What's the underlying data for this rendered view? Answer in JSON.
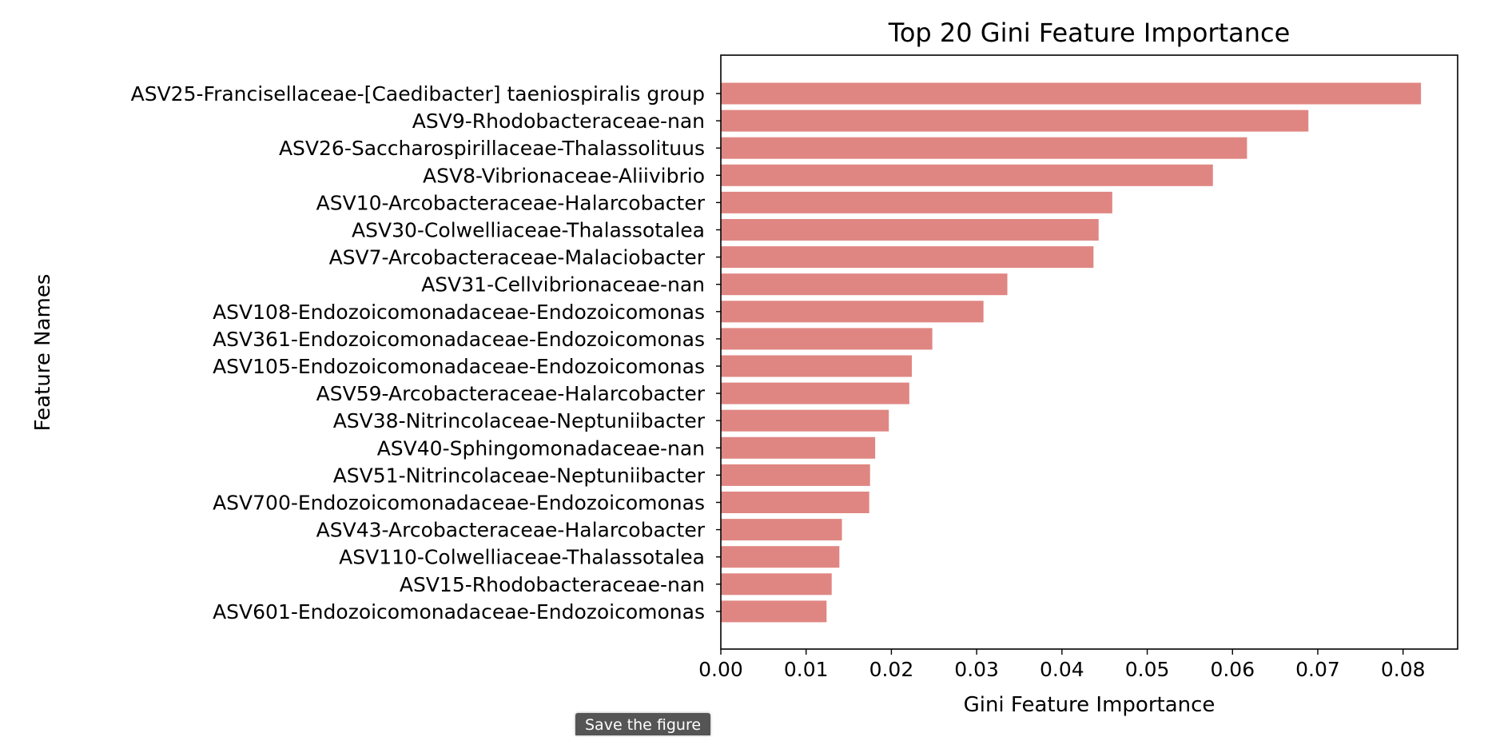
{
  "colors": {
    "bar": "#e08682",
    "axis": "#000000",
    "text": "#000000",
    "tooltip_bg": "#555555"
  },
  "tooltip": {
    "label": "Save the figure"
  },
  "chart_data": {
    "type": "bar",
    "orientation": "horizontal",
    "title": "Top 20 Gini Feature Importance",
    "xlabel": "Gini Feature Importance",
    "ylabel": "Feature Names",
    "xlim": [
      0,
      0.0864
    ],
    "xticks": [
      "0.00",
      "0.01",
      "0.02",
      "0.03",
      "0.04",
      "0.05",
      "0.06",
      "0.07",
      "0.08"
    ],
    "grid": false,
    "legend": "none",
    "categories": [
      "ASV25-Francisellaceae-[Caedibacter] taeniospiralis group",
      "ASV9-Rhodobacteraceae-nan",
      "ASV26-Saccharospirillaceae-Thalassolituus",
      "ASV8-Vibrionaceae-Aliivibrio",
      "ASV10-Arcobacteraceae-Halarcobacter",
      "ASV30-Colwelliaceae-Thalassotalea",
      "ASV7-Arcobacteraceae-Malaciobacter",
      "ASV31-Cellvibrionaceae-nan",
      "ASV108-Endozoicomonadaceae-Endozoicomonas",
      "ASV361-Endozoicomonadaceae-Endozoicomonas",
      "ASV105-Endozoicomonadaceae-Endozoicomonas",
      "ASV59-Arcobacteraceae-Halarcobacter",
      "ASV38-Nitrincolaceae-Neptuniibacter",
      "ASV40-Sphingomonadaceae-nan",
      "ASV51-Nitrincolaceae-Neptuniibacter",
      "ASV700-Endozoicomonadaceae-Endozoicomonas",
      "ASV43-Arcobacteraceae-Halarcobacter",
      "ASV110-Colwelliaceae-Thalassotalea",
      "ASV15-Rhodobacteraceae-nan",
      "ASV601-Endozoicomonadaceae-Endozoicomonas"
    ],
    "values": [
      0.0821,
      0.0689,
      0.0617,
      0.0577,
      0.0459,
      0.0443,
      0.0437,
      0.0336,
      0.0308,
      0.0248,
      0.0224,
      0.0221,
      0.0197,
      0.0181,
      0.0175,
      0.0174,
      0.0142,
      0.0139,
      0.013,
      0.0124
    ]
  }
}
